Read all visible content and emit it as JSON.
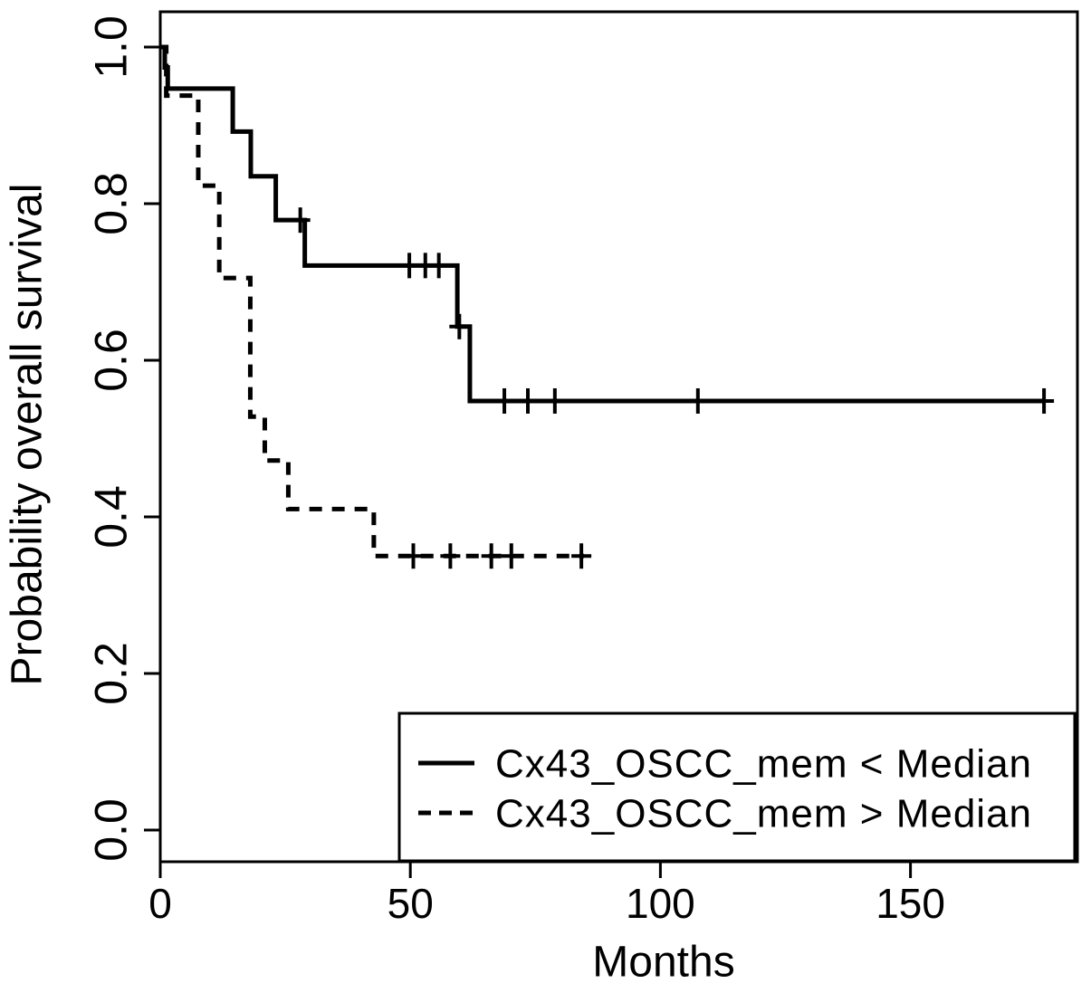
{
  "figure": {
    "background_color": "#ffffff",
    "ink_color": "#000000"
  },
  "chart_data": {
    "type": "line",
    "subtype": "kaplan-meier-step-curve",
    "title": "",
    "xlabel": "Months",
    "ylabel": "Probability overall survival",
    "xlim": [
      0,
      183
    ],
    "ylim": [
      -0.04,
      1.04
    ],
    "xticks": [
      0,
      50,
      100,
      150
    ],
    "ytick_labels": [
      "0.0",
      "0.2",
      "0.4",
      "0.6",
      "0.8",
      "1.0"
    ],
    "grid": false,
    "legend_position": "bottom-right",
    "series": [
      {
        "name": "Cx43_OSCC_mem < Median",
        "line_style": "solid",
        "color": "#000000",
        "steps": [
          [
            0,
            1.0
          ],
          [
            0.9,
            0.974
          ],
          [
            1.5,
            0.947
          ],
          [
            14.5,
            0.892
          ],
          [
            18.1,
            0.835
          ],
          [
            23.1,
            0.779
          ],
          [
            28.9,
            0.721
          ],
          [
            59.4,
            0.643
          ],
          [
            61.9,
            0.548
          ]
        ],
        "end_time": 176.7,
        "censor_marks": [
          [
            28.0,
            0.779
          ],
          [
            49.8,
            0.721
          ],
          [
            53.0,
            0.721
          ],
          [
            55.7,
            0.721
          ],
          [
            59.8,
            0.643
          ],
          [
            68.8,
            0.548
          ],
          [
            73.5,
            0.548
          ],
          [
            78.9,
            0.548
          ],
          [
            107.5,
            0.548
          ],
          [
            176.7,
            0.548
          ]
        ]
      },
      {
        "name": "Cx43_OSCC_mem > Median",
        "line_style": "dashed",
        "color": "#000000",
        "steps": [
          [
            0,
            1.0
          ],
          [
            1.2,
            0.938
          ],
          [
            7.6,
            0.823
          ],
          [
            11.8,
            0.705
          ],
          [
            18.0,
            0.528
          ],
          [
            20.9,
            0.472
          ],
          [
            25.6,
            0.41
          ],
          [
            42.7,
            0.35
          ]
        ],
        "end_time": 84.7,
        "censor_marks": [
          [
            50.6,
            0.35
          ],
          [
            58.0,
            0.35
          ],
          [
            66.2,
            0.35
          ],
          [
            70.2,
            0.35
          ],
          [
            84.2,
            0.35
          ]
        ]
      }
    ]
  }
}
